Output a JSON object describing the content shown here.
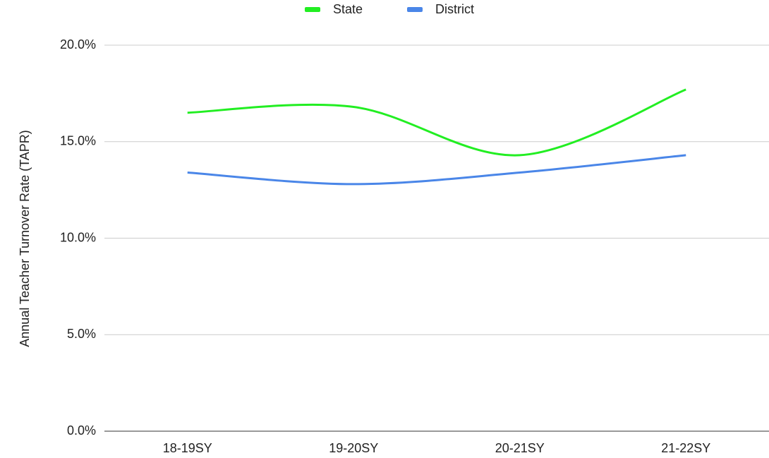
{
  "chart_data": {
    "type": "line",
    "y_label": "Annual Teacher Turnover Rate (TAPR)",
    "categories": [
      "18-19SY",
      "19-20SY",
      "20-21SY",
      "21-22SY"
    ],
    "series": [
      {
        "name": "State",
        "color": "#22ee22",
        "values": [
          16.5,
          16.8,
          14.3,
          17.7
        ]
      },
      {
        "name": "District",
        "color": "#4a86e8",
        "values": [
          13.4,
          12.8,
          13.4,
          14.3
        ]
      }
    ],
    "ylim": [
      0,
      20
    ],
    "yticks": [
      {
        "value": 0,
        "label": "0.0%"
      },
      {
        "value": 5,
        "label": "5.0%"
      },
      {
        "value": 10,
        "label": "10.0%"
      },
      {
        "value": 15,
        "label": "15.0%"
      },
      {
        "value": 20,
        "label": "20.0%"
      }
    ],
    "grid": true,
    "smooth": true,
    "legend": "top"
  }
}
